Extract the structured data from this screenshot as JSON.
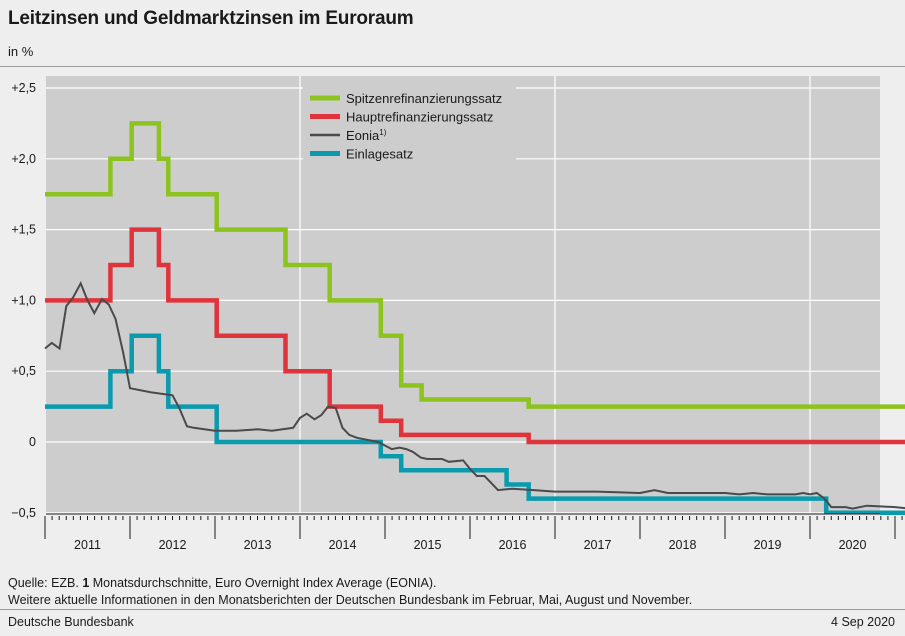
{
  "header": {
    "title": "Leitzinsen und Geldmarktzinsen im Euroraum",
    "unit": "in %"
  },
  "chart_data": {
    "type": "line",
    "title": "Leitzinsen und Geldmarktzinsen im Euroraum",
    "ylabel": "in %",
    "xlabel": "",
    "ylim": [
      -0.6,
      2.6
    ],
    "xlim": [
      2010.5,
      2020.75
    ],
    "y_ticks": [
      {
        "value": 2.5,
        "label": "+2,5"
      },
      {
        "value": 2.0,
        "label": "+2,0"
      },
      {
        "value": 1.5,
        "label": "+1,5"
      },
      {
        "value": 1.0,
        "label": "+1,0"
      },
      {
        "value": 0.5,
        "label": "+0,5"
      },
      {
        "value": 0.0,
        "label": "0"
      },
      {
        "value": -0.5,
        "label": "−0,5"
      }
    ],
    "x_ticks": [
      "2011",
      "2012",
      "2013",
      "2014",
      "2015",
      "2016",
      "2017",
      "2018",
      "2019",
      "2020"
    ],
    "legend": {
      "position": "top-center",
      "entries": [
        {
          "label": "Spitzenrefinanzierungssatz",
          "color": "#8cc31e"
        },
        {
          "label": "Hauptrefinanzierungssatz",
          "color": "#e0343c"
        },
        {
          "label": "Eonia",
          "sup": "1)",
          "color": "#4a4a4a"
        },
        {
          "label": "Einlagesatz",
          "color": "#0a9aad"
        }
      ]
    },
    "series": [
      {
        "name": "Spitzenrefinanzierungssatz",
        "color": "#8cc31e",
        "step": true,
        "points": [
          [
            2010.5,
            1.75
          ],
          [
            2011.27,
            2.0
          ],
          [
            2011.52,
            2.25
          ],
          [
            2011.84,
            2.0
          ],
          [
            2011.95,
            1.75
          ],
          [
            2012.52,
            1.5
          ],
          [
            2013.33,
            1.25
          ],
          [
            2013.85,
            1.0
          ],
          [
            2014.45,
            0.75
          ],
          [
            2014.69,
            0.4
          ],
          [
            2014.93,
            0.3
          ],
          [
            2016.19,
            0.25
          ],
          [
            2020.75,
            0.25
          ]
        ]
      },
      {
        "name": "Hauptrefinanzierungssatz",
        "color": "#e0343c",
        "step": true,
        "points": [
          [
            2010.5,
            1.0
          ],
          [
            2011.27,
            1.25
          ],
          [
            2011.52,
            1.5
          ],
          [
            2011.84,
            1.25
          ],
          [
            2011.95,
            1.0
          ],
          [
            2012.52,
            0.75
          ],
          [
            2013.33,
            0.5
          ],
          [
            2013.85,
            0.25
          ],
          [
            2014.45,
            0.15
          ],
          [
            2014.69,
            0.05
          ],
          [
            2016.19,
            0.0
          ],
          [
            2020.75,
            0.0
          ]
        ]
      },
      {
        "name": "Eonia",
        "color": "#4a4a4a",
        "step": false,
        "points": [
          [
            2010.5,
            0.66
          ],
          [
            2010.58,
            0.7
          ],
          [
            2010.67,
            0.66
          ],
          [
            2010.75,
            0.96
          ],
          [
            2010.83,
            1.02
          ],
          [
            2010.92,
            1.12
          ],
          [
            2011.0,
            1.0
          ],
          [
            2011.08,
            0.91
          ],
          [
            2011.17,
            1.01
          ],
          [
            2011.25,
            0.97
          ],
          [
            2011.33,
            0.87
          ],
          [
            2011.42,
            0.63
          ],
          [
            2011.5,
            0.38
          ],
          [
            2011.75,
            0.35
          ],
          [
            2012.0,
            0.33
          ],
          [
            2012.08,
            0.24
          ],
          [
            2012.17,
            0.11
          ],
          [
            2012.25,
            0.1
          ],
          [
            2012.5,
            0.08
          ],
          [
            2012.75,
            0.08
          ],
          [
            2013.0,
            0.09
          ],
          [
            2013.17,
            0.08
          ],
          [
            2013.42,
            0.1
          ],
          [
            2013.5,
            0.17
          ],
          [
            2013.58,
            0.2
          ],
          [
            2013.67,
            0.16
          ],
          [
            2013.75,
            0.19
          ],
          [
            2013.83,
            0.25
          ],
          [
            2013.92,
            0.24
          ],
          [
            2014.0,
            0.1
          ],
          [
            2014.08,
            0.05
          ],
          [
            2014.17,
            0.03
          ],
          [
            2014.42,
            0.0
          ],
          [
            2014.58,
            -0.05
          ],
          [
            2014.67,
            -0.04
          ],
          [
            2014.75,
            -0.05
          ],
          [
            2014.83,
            -0.07
          ],
          [
            2014.92,
            -0.11
          ],
          [
            2015.0,
            -0.12
          ],
          [
            2015.17,
            -0.12
          ],
          [
            2015.25,
            -0.14
          ],
          [
            2015.42,
            -0.13
          ],
          [
            2015.5,
            -0.19
          ],
          [
            2015.58,
            -0.24
          ],
          [
            2015.67,
            -0.24
          ],
          [
            2015.75,
            -0.29
          ],
          [
            2015.83,
            -0.34
          ],
          [
            2016.0,
            -0.33
          ],
          [
            2016.25,
            -0.34
          ],
          [
            2016.5,
            -0.35
          ],
          [
            2017.0,
            -0.35
          ],
          [
            2017.5,
            -0.36
          ],
          [
            2017.67,
            -0.34
          ],
          [
            2017.83,
            -0.36
          ],
          [
            2018.0,
            -0.36
          ],
          [
            2018.5,
            -0.36
          ],
          [
            2018.67,
            -0.37
          ],
          [
            2018.83,
            -0.36
          ],
          [
            2019.0,
            -0.37
          ],
          [
            2019.33,
            -0.37
          ],
          [
            2019.42,
            -0.36
          ],
          [
            2019.5,
            -0.37
          ],
          [
            2019.58,
            -0.36
          ],
          [
            2019.67,
            -0.4
          ],
          [
            2019.75,
            -0.46
          ],
          [
            2019.92,
            -0.46
          ],
          [
            2020.0,
            -0.47
          ],
          [
            2020.17,
            -0.45
          ],
          [
            2020.5,
            -0.46
          ],
          [
            2020.67,
            -0.47
          ]
        ]
      },
      {
        "name": "Einlagesatz",
        "color": "#0a9aad",
        "step": true,
        "points": [
          [
            2010.5,
            0.25
          ],
          [
            2011.27,
            0.5
          ],
          [
            2011.52,
            0.75
          ],
          [
            2011.84,
            0.5
          ],
          [
            2011.95,
            0.25
          ],
          [
            2012.52,
            0.0
          ],
          [
            2014.45,
            -0.1
          ],
          [
            2014.69,
            -0.2
          ],
          [
            2015.93,
            -0.3
          ],
          [
            2016.19,
            -0.4
          ],
          [
            2019.69,
            -0.5
          ],
          [
            2020.75,
            -0.5
          ]
        ]
      }
    ]
  },
  "footer": {
    "source_line1": "Quelle: EZB. 1 Monatsdurchschnitte, Euro Overnight Index Average (EONIA).",
    "source_line2": "Weitere aktuelle Informationen in den Monatsberichten der Deutschen Bundesbank im Februar, Mai, August und November.",
    "publisher": "Deutsche Bundesbank",
    "date": "4 Sep 2020"
  }
}
